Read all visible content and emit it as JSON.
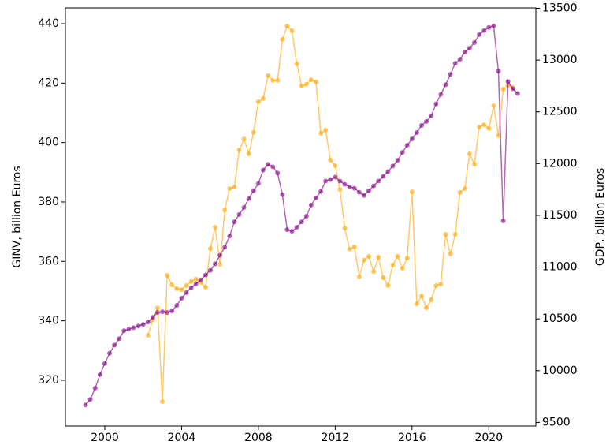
{
  "chart_data": {
    "type": "line",
    "xlim": [
      1997.95,
      2022.45
    ],
    "xticks": [
      2000,
      2004,
      2008,
      2012,
      2016,
      2020
    ],
    "ylim": [
      304.6,
      445.3
    ],
    "yticks": [
      320,
      340,
      360,
      380,
      400,
      420,
      440
    ],
    "y2lim": [
      9465,
      13504
    ],
    "y2ticks": [
      9500,
      10000,
      10500,
      11000,
      11500,
      12000,
      12500,
      13000,
      13500
    ],
    "ylabel": "GINV, billion Euros",
    "y2label": "GDP, billion Euros",
    "grid": false,
    "series": [
      {
        "color": "orange",
        "axis": "y",
        "x": [
          2002.25,
          2002.5,
          2002.75,
          2003,
          2003.25,
          2003.5,
          2003.75,
          2004,
          2004.25,
          2004.5,
          2004.75,
          2005,
          2005.25,
          2005.5,
          2005.75,
          2006,
          2006.25,
          2006.5,
          2006.75,
          2007,
          2007.25,
          2007.5,
          2007.75,
          2008,
          2008.25,
          2008.5,
          2008.75,
          2009,
          2009.25,
          2009.5,
          2009.75,
          2010,
          2010.25,
          2010.5,
          2010.75,
          2011,
          2011.25,
          2011.5,
          2011.75,
          2012,
          2012.25,
          2012.5,
          2012.75,
          2013,
          2013.25,
          2013.5,
          2013.75,
          2014,
          2014.25,
          2014.5,
          2014.75,
          2015,
          2015.25,
          2015.5,
          2015.75,
          2016,
          2016.25,
          2016.5,
          2016.75,
          2017,
          2017.25,
          2017.5,
          2017.75,
          2018,
          2018.25,
          2018.5,
          2018.75,
          2019,
          2019.25,
          2019.5,
          2019.75,
          2020,
          2020.25,
          2020.5,
          2020.75,
          2021,
          2021.25
        ],
        "values": [
          335.1,
          340.4,
          344.4,
          312.8,
          355.3,
          352.1,
          350.8,
          350.5,
          351.9,
          353.2,
          354.0,
          352.9,
          351.3,
          364.3,
          371.5,
          359.0,
          377.3,
          384.5,
          385.0,
          397.5,
          401.2,
          396.2,
          403.4,
          413.7,
          414.8,
          422.5,
          420.9,
          420.9,
          434.7,
          439.2,
          437.6,
          426.5,
          419.0,
          419.6,
          421.1,
          420.4,
          403.1,
          404.2,
          394.1,
          392.2,
          384.2,
          371.2,
          364.1,
          364.9,
          354.8,
          360.4,
          361.7,
          356.6,
          361.4,
          354.5,
          351.9,
          358.8,
          361.7,
          357.7,
          361.1,
          383.4,
          345.7,
          348.4,
          344.4,
          347.1,
          351.9,
          352.4,
          369.1,
          362.5,
          369.1,
          383.2,
          384.5,
          396.2,
          392.7,
          405.2,
          406.0,
          404.7,
          412.4,
          402.3,
          418.0,
          419.3,
          418.5
        ]
      },
      {
        "color": "purple",
        "axis": "y2",
        "x": [
          1999,
          1999.25,
          1999.5,
          1999.75,
          2000,
          2000.25,
          2000.5,
          2000.75,
          2001,
          2001.25,
          2001.5,
          2001.75,
          2002,
          2002.25,
          2002.5,
          2002.75,
          2003,
          2003.25,
          2003.5,
          2003.75,
          2004,
          2004.25,
          2004.5,
          2004.75,
          2005,
          2005.25,
          2005.5,
          2005.75,
          2006,
          2006.25,
          2006.5,
          2006.75,
          2007,
          2007.25,
          2007.5,
          2007.75,
          2008,
          2008.25,
          2008.5,
          2008.75,
          2009,
          2009.25,
          2009.5,
          2009.75,
          2010,
          2010.25,
          2010.5,
          2010.75,
          2011,
          2011.25,
          2011.5,
          2011.75,
          2012,
          2012.25,
          2012.5,
          2012.75,
          2013,
          2013.25,
          2013.5,
          2013.75,
          2014,
          2014.25,
          2014.5,
          2014.75,
          2015,
          2015.25,
          2015.5,
          2015.75,
          2016,
          2016.25,
          2016.5,
          2016.75,
          2017,
          2017.25,
          2017.5,
          2017.75,
          2018,
          2018.25,
          2018.5,
          2018.75,
          2019,
          2019.25,
          2019.5,
          2019.75,
          2020,
          2020.25,
          2020.5,
          2020.75,
          2021,
          2021.25,
          2021.5
        ],
        "values": [
          9669,
          9723,
          9831,
          9962,
          10069,
          10169,
          10246,
          10308,
          10385,
          10400,
          10415,
          10431,
          10446,
          10469,
          10515,
          10562,
          10569,
          10562,
          10577,
          10631,
          10700,
          10754,
          10800,
          10838,
          10877,
          10923,
          10969,
          11031,
          11115,
          11192,
          11300,
          11438,
          11508,
          11577,
          11662,
          11738,
          11808,
          11938,
          11992,
          11969,
          11908,
          11700,
          11362,
          11346,
          11385,
          11438,
          11492,
          11600,
          11669,
          11731,
          11831,
          11846,
          11869,
          11831,
          11800,
          11777,
          11762,
          11723,
          11692,
          11738,
          11785,
          11831,
          11877,
          11923,
          11977,
          12031,
          12108,
          12177,
          12238,
          12300,
          12369,
          12408,
          12462,
          12577,
          12669,
          12762,
          12862,
          12969,
          13008,
          13077,
          13115,
          13169,
          13246,
          13285,
          13315,
          13331,
          12892,
          11446,
          12792,
          12723,
          12677
        ]
      }
    ]
  }
}
